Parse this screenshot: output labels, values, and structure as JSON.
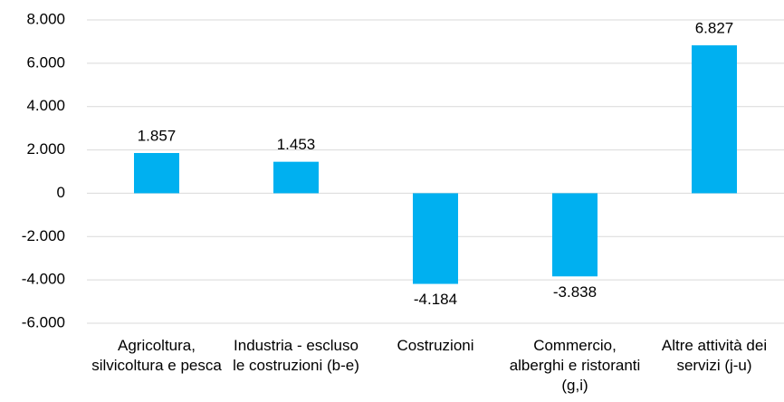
{
  "chart_data": {
    "type": "bar",
    "categories": [
      "Agricoltura, silvicoltura e pesca",
      "Industria - escluso le costruzioni (b-e)",
      "Costruzioni",
      "Commercio, alberghi e ristoranti (g,i)",
      "Altre attività dei servizi (j-u)"
    ],
    "values": [
      1857,
      1453,
      -4184,
      -3838,
      6827
    ],
    "value_labels": [
      "1.857",
      "1.453",
      "-4.184",
      "-3.838",
      "6.827"
    ],
    "color": "#00b0f0",
    "ylim": [
      -6000,
      8000
    ],
    "yticks": [
      {
        "value": -6000,
        "label": "-6.000"
      },
      {
        "value": -4000,
        "label": "-4.000"
      },
      {
        "value": -2000,
        "label": "-2.000"
      },
      0,
      {
        "value": 2000,
        "label": "2.000"
      },
      {
        "value": 4000,
        "label": "4.000"
      },
      {
        "value": 6000,
        "label": "6.000"
      },
      {
        "value": 8000,
        "label": "8.000"
      }
    ],
    "grid": true
  }
}
